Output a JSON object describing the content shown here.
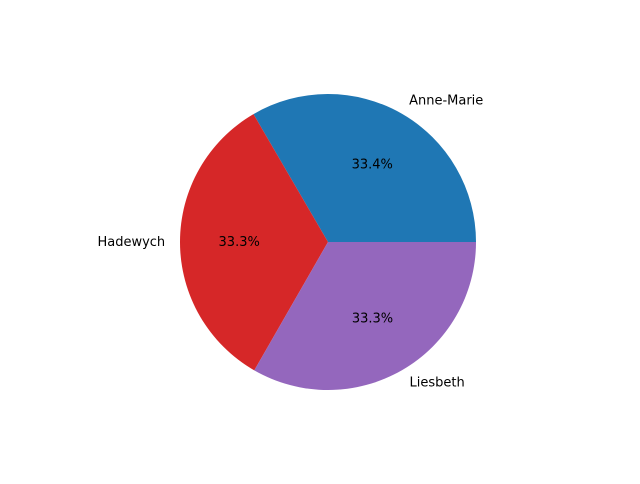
{
  "chart_data": {
    "type": "pie",
    "title": "",
    "slices": [
      {
        "label": "Anne-Marie",
        "value": 33.4,
        "pct_label": "33.4%",
        "color": "#1f77b4"
      },
      {
        "label": "Hadewych",
        "value": 33.3,
        "pct_label": "33.3%",
        "color": "#d62728"
      },
      {
        "label": "Liesbeth",
        "value": 33.3,
        "pct_label": "33.3%",
        "color": "#9467bd"
      }
    ],
    "start_angle_deg": 0,
    "direction": "counterclockwise",
    "legend": "none"
  }
}
